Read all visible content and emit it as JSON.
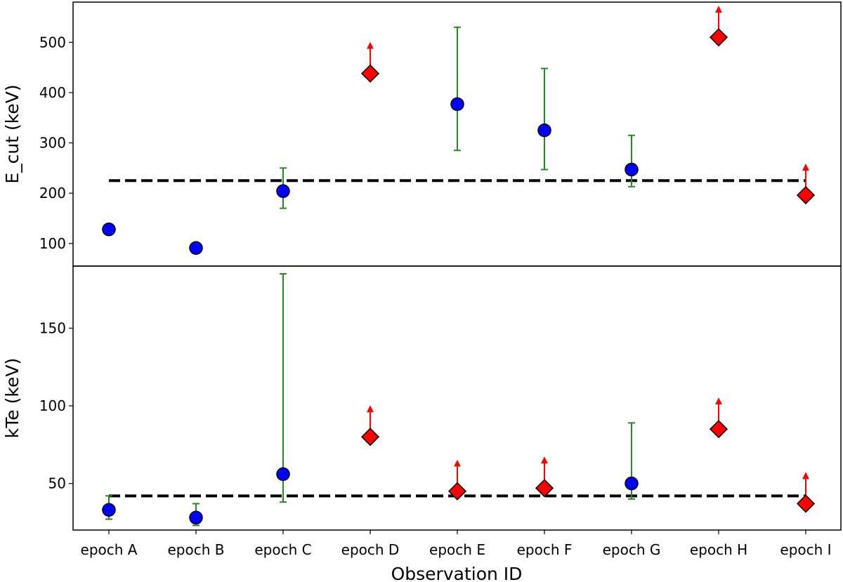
{
  "chart_data": [
    {
      "type": "scatter",
      "ylabel": "E_cut (keV)",
      "ylim": [
        55,
        580
      ],
      "yticks": [
        100,
        200,
        300,
        400,
        500
      ],
      "categories": [
        "epoch A",
        "epoch B",
        "epoch C",
        "epoch D",
        "epoch E",
        "epoch F",
        "epoch G",
        "epoch H",
        "epoch I"
      ],
      "reference_line": 225,
      "measurements": [
        {
          "category": "epoch A",
          "value": 128,
          "low": 118,
          "high": 138
        },
        {
          "category": "epoch B",
          "value": 91,
          "low": 88,
          "high": 94
        },
        {
          "category": "epoch C",
          "value": 204,
          "low": 170,
          "high": 250
        },
        {
          "category": "epoch E",
          "value": 377,
          "low": 285,
          "high": 530
        },
        {
          "category": "epoch F",
          "value": 325,
          "low": 247,
          "high": 448
        },
        {
          "category": "epoch G",
          "value": 247,
          "low": 213,
          "high": 315
        }
      ],
      "lower_limits": [
        {
          "category": "epoch D",
          "value": 438
        },
        {
          "category": "epoch H",
          "value": 510
        },
        {
          "category": "epoch I",
          "value": 196
        }
      ],
      "colors": {
        "measurement": "#0000ff",
        "errorbar": "#228b22",
        "limit": "#ff0000",
        "reference": "#000000"
      }
    },
    {
      "type": "scatter",
      "xlabel": "Observation ID",
      "ylabel": "kTe (keV)",
      "ylim": [
        20,
        190
      ],
      "yticks": [
        50,
        100,
        150
      ],
      "categories": [
        "epoch A",
        "epoch B",
        "epoch C",
        "epoch D",
        "epoch E",
        "epoch F",
        "epoch G",
        "epoch H",
        "epoch I"
      ],
      "reference_line": 42,
      "measurements": [
        {
          "category": "epoch A",
          "value": 33,
          "low": 27,
          "high": 42
        },
        {
          "category": "epoch B",
          "value": 28,
          "low": 23,
          "high": 37
        },
        {
          "category": "epoch C",
          "value": 56,
          "low": 38,
          "high": 185
        },
        {
          "category": "epoch G",
          "value": 50,
          "low": 40,
          "high": 89
        }
      ],
      "lower_limits": [
        {
          "category": "epoch D",
          "value": 80
        },
        {
          "category": "epoch E",
          "value": 45
        },
        {
          "category": "epoch F",
          "value": 47
        },
        {
          "category": "epoch H",
          "value": 85
        },
        {
          "category": "epoch I",
          "value": 37
        }
      ],
      "colors": {
        "measurement": "#0000ff",
        "errorbar": "#228b22",
        "limit": "#ff0000",
        "reference": "#000000"
      }
    }
  ]
}
